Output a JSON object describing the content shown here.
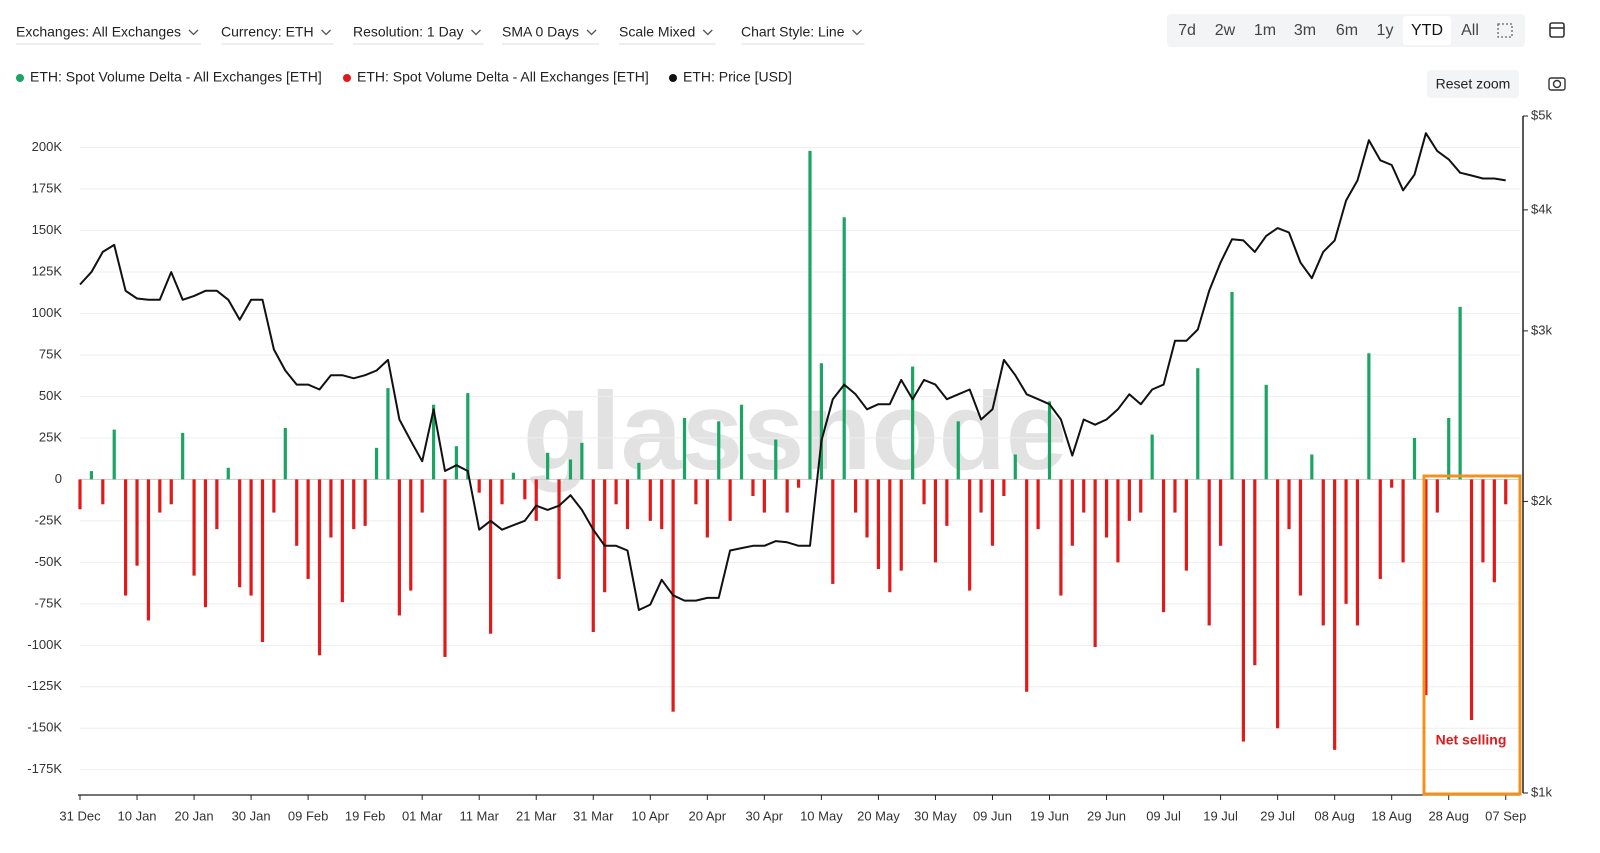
{
  "toolbar": {
    "filters": [
      "Exchanges: All Exchanges",
      "Currency: ETH",
      "Resolution: 1 Day",
      "SMA 0 Days",
      "Scale Mixed",
      "Chart Style: Line"
    ],
    "ranges": [
      "7d",
      "2w",
      "1m",
      "3m",
      "6m",
      "1y",
      "YTD",
      "All"
    ],
    "active_range": "YTD",
    "reset_zoom": "Reset zoom"
  },
  "chart_data": {
    "type": "bar",
    "watermark": "glassnode",
    "annotation": "Net selling",
    "grid": true,
    "x": [
      0,
      2,
      4,
      6,
      8,
      10,
      12,
      14,
      16,
      18,
      20,
      22,
      24,
      26,
      28,
      30,
      32,
      34,
      36,
      38,
      40,
      42,
      44,
      46,
      48,
      50,
      52,
      54,
      56,
      58,
      60,
      62,
      64,
      66,
      68,
      70,
      72,
      74,
      76,
      78,
      80,
      82,
      84,
      86,
      88,
      90,
      92,
      94,
      96,
      98,
      100,
      102,
      104,
      106,
      108,
      110,
      112,
      114,
      116,
      118,
      120,
      122,
      124,
      126,
      128,
      130,
      132,
      134,
      136,
      138,
      140,
      142,
      144,
      146,
      148,
      150,
      152,
      154,
      156,
      158,
      160,
      162,
      164,
      166,
      168,
      170,
      172,
      174,
      176,
      178,
      180,
      182,
      184,
      186,
      188,
      190,
      192,
      194,
      196,
      198,
      200,
      202,
      204,
      206,
      208,
      210,
      212,
      214,
      216,
      218,
      220,
      222,
      224,
      226,
      228,
      230,
      232,
      234,
      236,
      238,
      240,
      242,
      244,
      246,
      248,
      250
    ],
    "xlim": [
      0,
      252.5
    ],
    "xticks": [
      {
        "value": 0,
        "label": "31 Dec"
      },
      {
        "value": 10,
        "label": "10 Jan"
      },
      {
        "value": 20,
        "label": "20 Jan"
      },
      {
        "value": 30,
        "label": "30 Jan"
      },
      {
        "value": 40,
        "label": "09 Feb"
      },
      {
        "value": 50,
        "label": "19 Feb"
      },
      {
        "value": 60,
        "label": "01 Mar"
      },
      {
        "value": 70,
        "label": "11 Mar"
      },
      {
        "value": 80,
        "label": "21 Mar"
      },
      {
        "value": 90,
        "label": "31 Mar"
      },
      {
        "value": 100,
        "label": "10 Apr"
      },
      {
        "value": 110,
        "label": "20 Apr"
      },
      {
        "value": 120,
        "label": "30 Apr"
      },
      {
        "value": 130,
        "label": "10 May"
      },
      {
        "value": 140,
        "label": "20 May"
      },
      {
        "value": 150,
        "label": "30 May"
      },
      {
        "value": 160,
        "label": "09 Jun"
      },
      {
        "value": 170,
        "label": "19 Jun"
      },
      {
        "value": 180,
        "label": "29 Jun"
      },
      {
        "value": 190,
        "label": "09 Jul"
      },
      {
        "value": 200,
        "label": "19 Jul"
      },
      {
        "value": 210,
        "label": "29 Jul"
      },
      {
        "value": 220,
        "label": "08 Aug"
      },
      {
        "value": 230,
        "label": "18 Aug"
      },
      {
        "value": 240,
        "label": "28 Aug"
      },
      {
        "value": 250,
        "label": "07 Sep"
      }
    ],
    "ylim": [
      -189000,
      219000
    ],
    "yticks": [
      {
        "value": -175000,
        "label": "-175K"
      },
      {
        "value": -150000,
        "label": "-150K"
      },
      {
        "value": -125000,
        "label": "-125K"
      },
      {
        "value": -100000,
        "label": "-100K"
      },
      {
        "value": -75000,
        "label": "-75K"
      },
      {
        "value": -50000,
        "label": "-50K"
      },
      {
        "value": -25000,
        "label": "-25K"
      },
      0,
      {
        "value": 25000,
        "label": "25K"
      },
      {
        "value": 50000,
        "label": "50K"
      },
      {
        "value": 75000,
        "label": "75K"
      },
      {
        "value": 100000,
        "label": "100K"
      },
      {
        "value": 125000,
        "label": "125K"
      },
      {
        "value": 150000,
        "label": "150K"
      },
      {
        "value": 175000,
        "label": "175K"
      },
      {
        "value": 200000,
        "label": "200K"
      }
    ],
    "y2lim": [
      1000,
      5000
    ],
    "y2_log": true,
    "y2ticks": [
      {
        "value": 1000,
        "label": "$1k"
      },
      {
        "value": 2000,
        "label": "$2k"
      },
      {
        "value": 3000,
        "label": "$3k"
      },
      {
        "value": 4000,
        "label": "$4k"
      },
      {
        "value": 5000,
        "label": "$5k"
      }
    ],
    "series": [
      {
        "name": "ETH: Spot Volume Delta - All Exchanges [ETH]",
        "type": "bar",
        "color": "#1aa564",
        "values": [
          null,
          5000,
          null,
          30000,
          null,
          null,
          null,
          null,
          null,
          28000,
          null,
          null,
          null,
          7000,
          null,
          null,
          null,
          null,
          31000,
          null,
          null,
          null,
          null,
          null,
          null,
          null,
          19000,
          55000,
          null,
          null,
          null,
          45000,
          null,
          20000,
          52000,
          null,
          null,
          null,
          4000,
          null,
          null,
          16000,
          null,
          12000,
          22000,
          null,
          null,
          null,
          null,
          10000,
          null,
          null,
          null,
          37000,
          null,
          null,
          35000,
          null,
          45000,
          null,
          null,
          24000,
          null,
          null,
          198000,
          70000,
          null,
          158000,
          null,
          null,
          null,
          null,
          null,
          68000,
          null,
          null,
          null,
          35000,
          null,
          null,
          null,
          null,
          15000,
          null,
          null,
          47000,
          null,
          null,
          null,
          null,
          null,
          null,
          null,
          null,
          27000,
          null,
          null,
          null,
          67000,
          null,
          null,
          113000,
          null,
          null,
          57000,
          null,
          null,
          null,
          15000,
          null,
          null,
          null,
          null,
          76000,
          null,
          null,
          null,
          25000,
          null,
          null,
          37000,
          104000,
          null,
          null,
          null,
          null
        ]
      },
      {
        "name": "ETH: Spot Volume Delta - All Exchanges [ETH]",
        "type": "bar",
        "color": "#e01a1a",
        "values": [
          -18000,
          null,
          -15000,
          null,
          -70000,
          -52000,
          -85000,
          -20000,
          -15000,
          null,
          -58000,
          -77000,
          -30000,
          null,
          -65000,
          -70000,
          -98000,
          -20000,
          null,
          -40000,
          -60000,
          -106000,
          -35000,
          -74000,
          -30000,
          -28000,
          null,
          null,
          -82000,
          -67000,
          -20000,
          null,
          -107000,
          null,
          null,
          -8000,
          -93000,
          -15000,
          null,
          -12000,
          -25000,
          null,
          -60000,
          null,
          null,
          -92000,
          -68000,
          -15000,
          -30000,
          null,
          -25000,
          -30000,
          -140000,
          null,
          -15000,
          -35000,
          null,
          -25000,
          null,
          -10000,
          -20000,
          null,
          -20000,
          -5000,
          null,
          null,
          -63000,
          null,
          -20000,
          -35000,
          -54000,
          -68000,
          -55000,
          null,
          -15000,
          -50000,
          -28000,
          null,
          -67000,
          -20000,
          -40000,
          -10000,
          null,
          -128000,
          -30000,
          null,
          -70000,
          -40000,
          -20000,
          -101000,
          -35000,
          -50000,
          -25000,
          -20000,
          null,
          -80000,
          -20000,
          -55000,
          null,
          -88000,
          -40000,
          null,
          -158000,
          -112000,
          null,
          -150000,
          -30000,
          -70000,
          null,
          -88000,
          -163000,
          -75000,
          -88000,
          null,
          -60000,
          -5000,
          -50000,
          null,
          -130000,
          -20000,
          null,
          null,
          -145000,
          -50000,
          -62000,
          -15000
        ]
      },
      {
        "name": "ETH: Price [USD]",
        "type": "line",
        "axis": "y2",
        "color": "#111111",
        "values": [
          3350,
          3450,
          3620,
          3680,
          3300,
          3240,
          3230,
          3230,
          3450,
          3230,
          3260,
          3300,
          3300,
          3230,
          3080,
          3230,
          3230,
          2870,
          2730,
          2640,
          2640,
          2610,
          2700,
          2700,
          2680,
          2700,
          2730,
          2800,
          2430,
          2310,
          2200,
          2490,
          2150,
          2180,
          2150,
          1870,
          1910,
          1870,
          1890,
          1910,
          1980,
          1960,
          1980,
          2030,
          1960,
          1870,
          1800,
          1800,
          1780,
          1545,
          1565,
          1660,
          1600,
          1580,
          1580,
          1590,
          1590,
          1780,
          1790,
          1800,
          1800,
          1820,
          1815,
          1800,
          1800,
          2310,
          2550,
          2640,
          2580,
          2490,
          2520,
          2520,
          2670,
          2550,
          2670,
          2640,
          2550,
          2580,
          2610,
          2430,
          2490,
          2800,
          2700,
          2580,
          2550,
          2520,
          2430,
          2230,
          2430,
          2400,
          2430,
          2490,
          2580,
          2520,
          2610,
          2640,
          2930,
          2930,
          3010,
          3300,
          3530,
          3730,
          3720,
          3620,
          3760,
          3830,
          3790,
          3530,
          3400,
          3620,
          3720,
          4090,
          4290,
          4720,
          4500,
          4450,
          4190,
          4350,
          4800,
          4600,
          4510,
          4370,
          4340,
          4310,
          4310,
          4290
        ]
      }
    ]
  }
}
